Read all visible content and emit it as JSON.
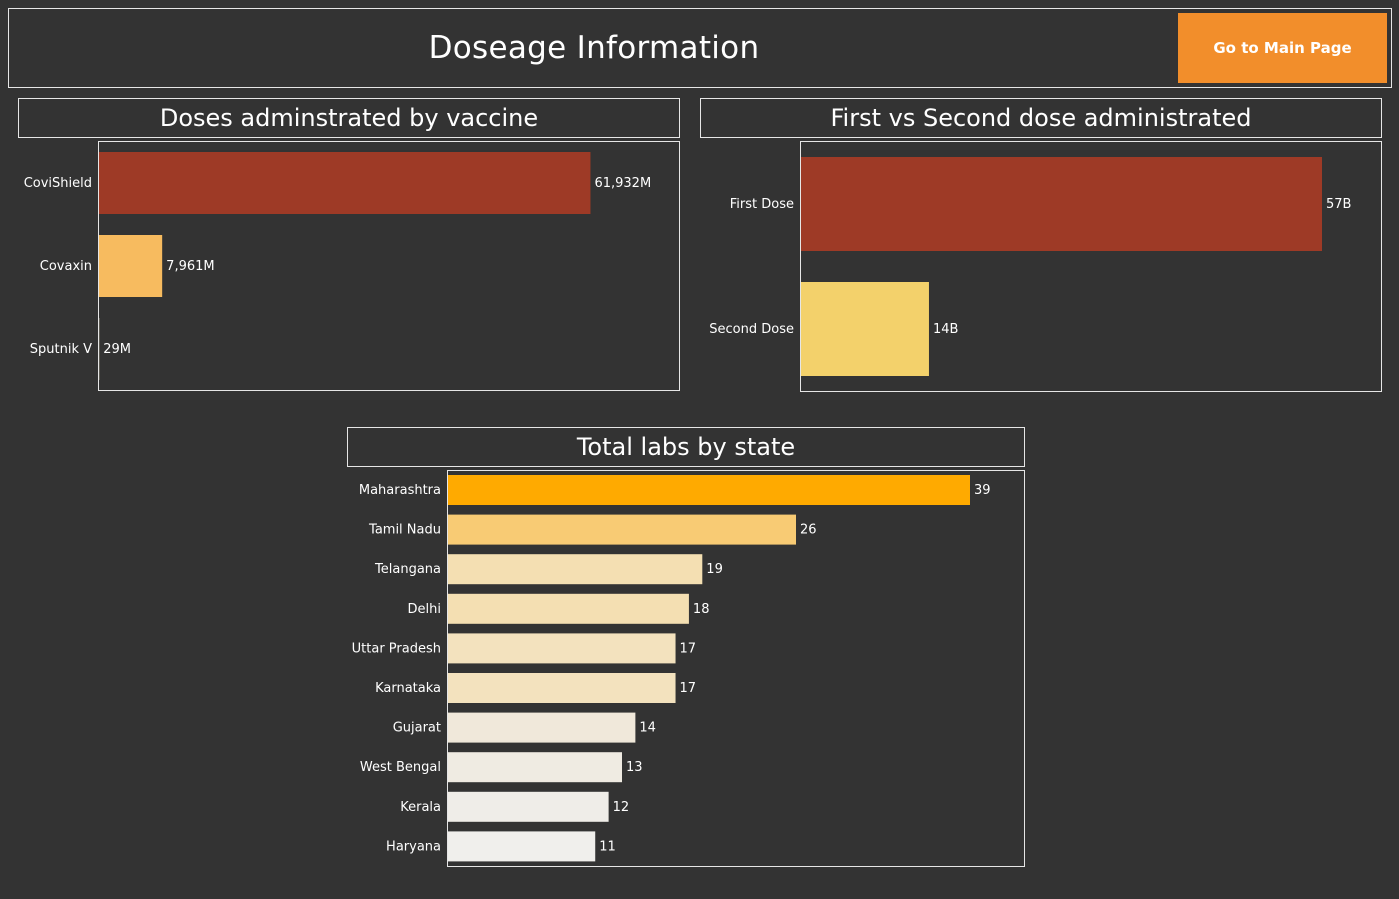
{
  "header": {
    "title": "Doseage Information",
    "main_button_label": "Go to Main Page"
  },
  "colors": {
    "background": "#333333",
    "button": "#f28e2b",
    "border": "#e6e6e6"
  },
  "chart_data": [
    {
      "type": "bar",
      "orientation": "horizontal",
      "title": "Doses adminstrated by vaccine",
      "categories": [
        "CoviShield",
        "Covaxin",
        "Sputnik V"
      ],
      "values": [
        61932,
        7961,
        29
      ],
      "value_labels": [
        "61,932M",
        "7,961M",
        "29M"
      ],
      "unit": "M",
      "colors": [
        "#9e3a26",
        "#f7bb5f",
        "#f2e8c8"
      ],
      "xlim": [
        0,
        62000
      ]
    },
    {
      "type": "bar",
      "orientation": "horizontal",
      "title": "First vs Second dose administrated",
      "categories": [
        "First Dose",
        "Second Dose"
      ],
      "values": [
        57,
        14
      ],
      "value_labels": [
        "57B",
        "14B"
      ],
      "unit": "B",
      "colors": [
        "#9e3a26",
        "#f3d16b"
      ],
      "xlim": [
        0,
        57
      ]
    },
    {
      "type": "bar",
      "orientation": "horizontal",
      "title": "Total labs by state",
      "categories": [
        "Maharashtra",
        "Tamil Nadu",
        "Telangana",
        "Delhi",
        "Uttar Pradesh",
        "Karnataka",
        "Gujarat",
        "West Bengal",
        "Kerala",
        "Haryana"
      ],
      "values": [
        39,
        26,
        19,
        18,
        17,
        17,
        14,
        13,
        12,
        11
      ],
      "colors": [
        "#ffaa00",
        "#f8cb74",
        "#f4dfb2",
        "#f4dfb2",
        "#f3e2be",
        "#f3e2be",
        "#f0e8da",
        "#efebe2",
        "#efede8",
        "#f0efec"
      ],
      "xlim": [
        0,
        39
      ]
    }
  ]
}
